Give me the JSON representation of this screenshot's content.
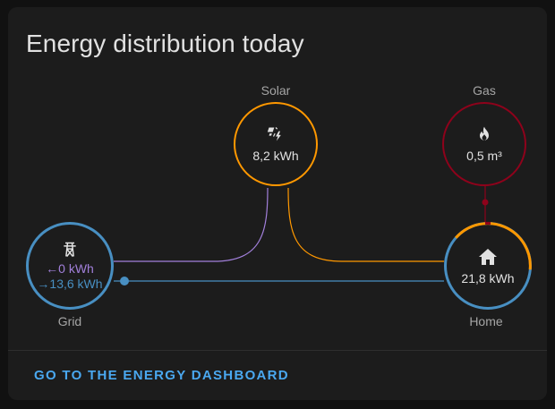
{
  "card": {
    "title": "Energy distribution today"
  },
  "nodes": {
    "solar": {
      "label": "Solar",
      "value": "8,2 kWh",
      "icon": "solar-power-icon",
      "color": "#ff9800"
    },
    "gas": {
      "label": "Gas",
      "value": "0,5 m³",
      "icon": "fire-icon",
      "color": "#8e021b"
    },
    "grid": {
      "label": "Grid",
      "import_value": "←0 kWh",
      "export_value": "→13,6 kWh",
      "icon": "transmission-tower-icon",
      "color": "#488fc2",
      "return_color": "#a280db"
    },
    "home": {
      "label": "Home",
      "value": "21,8 kWh",
      "icon": "home-icon"
    }
  },
  "footer": {
    "link_label": "GO TO THE ENERGY DASHBOARD"
  },
  "colors": {
    "card_bg": "#1c1c1c",
    "link": "#4aa8f0"
  }
}
